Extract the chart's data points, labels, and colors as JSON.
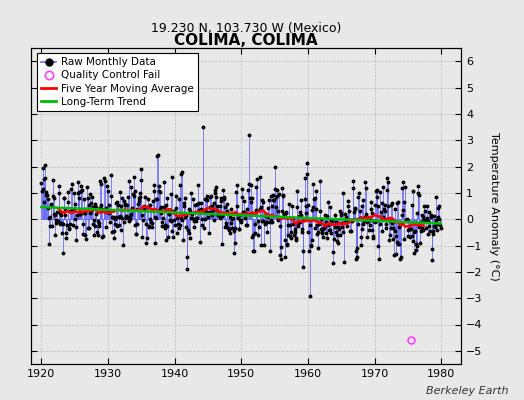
{
  "title": "COLIMA, COLIMA",
  "subtitle": "19.230 N, 103.730 W (Mexico)",
  "credit": "Berkeley Earth",
  "ylabel": "Temperature Anomaly (°C)",
  "ylim": [
    -5.5,
    6.5
  ],
  "xlim": [
    1918.5,
    1983
  ],
  "yticks": [
    -5,
    -4,
    -3,
    -2,
    -1,
    0,
    1,
    2,
    3,
    4,
    5,
    6
  ],
  "xticks": [
    1920,
    1930,
    1940,
    1950,
    1960,
    1970,
    1980
  ],
  "background_color": "#e8e8e8",
  "plot_bg_color": "#e8e8e8",
  "raw_line_color": "#6666ff",
  "raw_marker_color": "#000000",
  "moving_avg_color": "#ff0000",
  "trend_color": "#00bb00",
  "qc_fail_color": "#ff44ff",
  "seed": 42,
  "start_year": 1920,
  "end_year": 1980
}
